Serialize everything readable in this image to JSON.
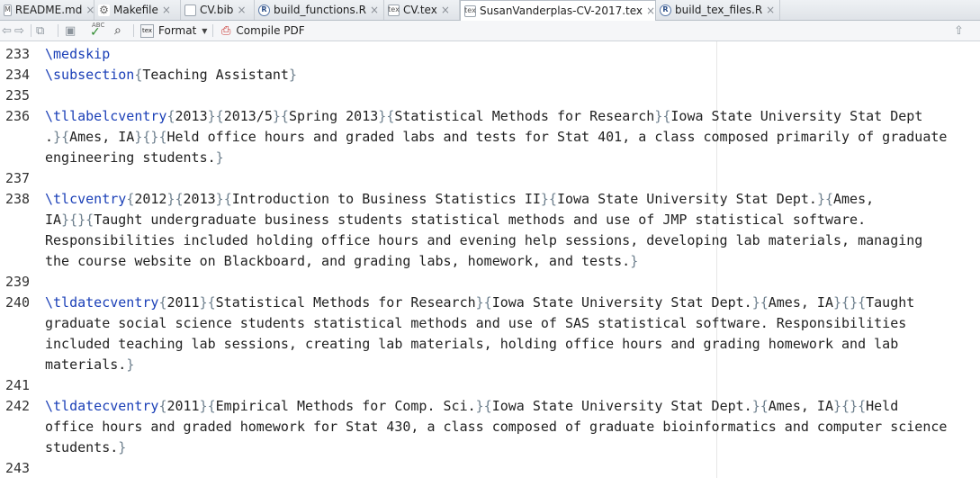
{
  "tabs": [
    {
      "label": "README.md",
      "icon": "markdown-file-icon"
    },
    {
      "label": "Makefile",
      "icon": "gear-icon"
    },
    {
      "label": "CV.bib",
      "icon": "file-icon"
    },
    {
      "label": "build_functions.R",
      "icon": "r-file-icon"
    },
    {
      "label": "CV.tex",
      "icon": "tex-file-icon"
    },
    {
      "label": "SusanVanderplas-CV-2017.tex",
      "icon": "tex-file-icon",
      "active": true
    },
    {
      "label": "build_tex_files.R",
      "icon": "r-file-icon"
    }
  ],
  "toolbar": {
    "format_label": "Format",
    "compile_label": "Compile PDF",
    "spellcheck_badge": "ABC"
  },
  "lines": [
    {
      "n": "233",
      "text": "\\medskip"
    },
    {
      "n": "234",
      "text": "\\subsection{Teaching Assistant}"
    },
    {
      "n": "235",
      "text": ""
    },
    {
      "n": "236",
      "text": "\\tllabelcventry{2013}{2013/5}{Spring 2013}{Statistical Methods for Research}{Iowa State University Stat Dept"
    },
    {
      "n": "",
      "text": ".}{Ames, IA}{}{Held office hours and graded labs and tests for Stat 401, a class composed primarily of graduate"
    },
    {
      "n": "",
      "text": "engineering students.}"
    },
    {
      "n": "237",
      "text": ""
    },
    {
      "n": "238",
      "text": "\\tlcventry{2012}{2013}{Introduction to Business Statistics II}{Iowa State University Stat Dept.}{Ames,"
    },
    {
      "n": "",
      "text": "IA}{}{Taught undergraduate business students statistical methods and use of JMP statistical software."
    },
    {
      "n": "",
      "text": "Responsibilities included holding office hours and evening help sessions, developing lab materials, managing"
    },
    {
      "n": "",
      "text": "the course website on Blackboard, and grading labs, homework, and tests.}"
    },
    {
      "n": "239",
      "text": ""
    },
    {
      "n": "240",
      "text": "\\tldatecventry{2011}{Statistical Methods for Research}{Iowa State University Stat Dept.}{Ames, IA}{}{Taught"
    },
    {
      "n": "",
      "text": "graduate social science students statistical methods and use of SAS statistical software. Responsibilities"
    },
    {
      "n": "",
      "text": "included teaching lab sessions, creating lab materials, holding office hours and grading homework and lab"
    },
    {
      "n": "",
      "text": "materials.}"
    },
    {
      "n": "241",
      "text": ""
    },
    {
      "n": "242",
      "text": "\\tldatecventry{2011}{Empirical Methods for Comp. Sci.}{Iowa State University Stat Dept.}{Ames, IA}{}{Held"
    },
    {
      "n": "",
      "text": "office hours and graded homework for Stat 430, a class composed of graduate bioinformatics and computer science"
    },
    {
      "n": "",
      "text": "students.}"
    },
    {
      "n": "243",
      "text": ""
    }
  ]
}
